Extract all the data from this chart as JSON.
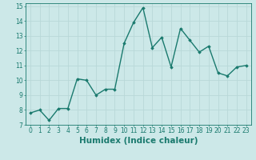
{
  "x": [
    0,
    1,
    2,
    3,
    4,
    5,
    6,
    7,
    8,
    9,
    10,
    11,
    12,
    13,
    14,
    15,
    16,
    17,
    18,
    19,
    20,
    21,
    22,
    23
  ],
  "y": [
    7.8,
    8.0,
    7.3,
    8.1,
    8.1,
    10.1,
    10.0,
    9.0,
    9.4,
    9.4,
    12.5,
    13.9,
    14.9,
    12.2,
    12.9,
    10.9,
    13.5,
    12.7,
    11.9,
    12.3,
    10.5,
    10.3,
    10.9,
    11.0
  ],
  "line_color": "#1a7a6e",
  "marker": "D",
  "markersize": 1.8,
  "linewidth": 1.0,
  "bg_color": "#cce8e8",
  "grid_color": "#b8d8d8",
  "xlabel": "Humidex (Indice chaleur)",
  "ylim": [
    7,
    15.2
  ],
  "yticks": [
    7,
    8,
    9,
    10,
    11,
    12,
    13,
    14,
    15
  ],
  "xticks": [
    0,
    1,
    2,
    3,
    4,
    5,
    6,
    7,
    8,
    9,
    10,
    11,
    12,
    13,
    14,
    15,
    16,
    17,
    18,
    19,
    20,
    21,
    22,
    23
  ],
  "tick_color": "#1a7a6e",
  "label_color": "#1a7a6e",
  "tick_fontsize": 5.5,
  "xlabel_fontsize": 7.5,
  "grid_lw": 0.6
}
